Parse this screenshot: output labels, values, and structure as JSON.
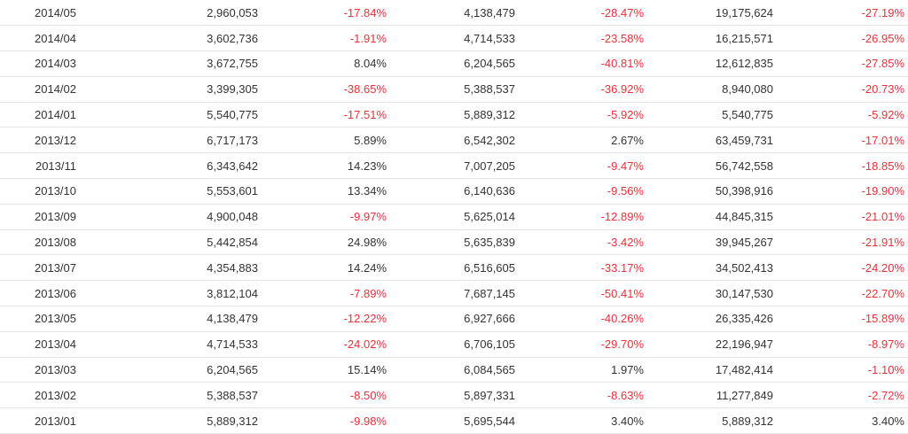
{
  "colors": {
    "text": "#333333",
    "negative": "#e8303a",
    "row_border": "#e5e5e5"
  },
  "rows": [
    {
      "period": "2014/05",
      "col1": "2,960,053",
      "col2": "-17.84%",
      "col3": "4,138,479",
      "col4": "-28.47%",
      "col5": "19,175,624",
      "col6": "-27.19%"
    },
    {
      "period": "2014/04",
      "col1": "3,602,736",
      "col2": "-1.91%",
      "col3": "4,714,533",
      "col4": "-23.58%",
      "col5": "16,215,571",
      "col6": "-26.95%"
    },
    {
      "period": "2014/03",
      "col1": "3,672,755",
      "col2": "8.04%",
      "col3": "6,204,565",
      "col4": "-40.81%",
      "col5": "12,612,835",
      "col6": "-27.85%"
    },
    {
      "period": "2014/02",
      "col1": "3,399,305",
      "col2": "-38.65%",
      "col3": "5,388,537",
      "col4": "-36.92%",
      "col5": "8,940,080",
      "col6": "-20.73%"
    },
    {
      "period": "2014/01",
      "col1": "5,540,775",
      "col2": "-17.51%",
      "col3": "5,889,312",
      "col4": "-5.92%",
      "col5": "5,540,775",
      "col6": "-5.92%"
    },
    {
      "period": "2013/12",
      "col1": "6,717,173",
      "col2": "5.89%",
      "col3": "6,542,302",
      "col4": "2.67%",
      "col5": "63,459,731",
      "col6": "-17.01%"
    },
    {
      "period": "2013/11",
      "col1": "6,343,642",
      "col2": "14.23%",
      "col3": "7,007,205",
      "col4": "-9.47%",
      "col5": "56,742,558",
      "col6": "-18.85%"
    },
    {
      "period": "2013/10",
      "col1": "5,553,601",
      "col2": "13.34%",
      "col3": "6,140,636",
      "col4": "-9.56%",
      "col5": "50,398,916",
      "col6": "-19.90%"
    },
    {
      "period": "2013/09",
      "col1": "4,900,048",
      "col2": "-9.97%",
      "col3": "5,625,014",
      "col4": "-12.89%",
      "col5": "44,845,315",
      "col6": "-21.01%"
    },
    {
      "period": "2013/08",
      "col1": "5,442,854",
      "col2": "24.98%",
      "col3": "5,635,839",
      "col4": "-3.42%",
      "col5": "39,945,267",
      "col6": "-21.91%"
    },
    {
      "period": "2013/07",
      "col1": "4,354,883",
      "col2": "14.24%",
      "col3": "6,516,605",
      "col4": "-33.17%",
      "col5": "34,502,413",
      "col6": "-24.20%"
    },
    {
      "period": "2013/06",
      "col1": "3,812,104",
      "col2": "-7.89%",
      "col3": "7,687,145",
      "col4": "-50.41%",
      "col5": "30,147,530",
      "col6": "-22.70%"
    },
    {
      "period": "2013/05",
      "col1": "4,138,479",
      "col2": "-12.22%",
      "col3": "6,927,666",
      "col4": "-40.26%",
      "col5": "26,335,426",
      "col6": "-15.89%"
    },
    {
      "period": "2013/04",
      "col1": "4,714,533",
      "col2": "-24.02%",
      "col3": "6,706,105",
      "col4": "-29.70%",
      "col5": "22,196,947",
      "col6": "-8.97%"
    },
    {
      "period": "2013/03",
      "col1": "6,204,565",
      "col2": "15.14%",
      "col3": "6,084,565",
      "col4": "1.97%",
      "col5": "17,482,414",
      "col6": "-1.10%"
    },
    {
      "period": "2013/02",
      "col1": "5,388,537",
      "col2": "-8.50%",
      "col3": "5,897,331",
      "col4": "-8.63%",
      "col5": "11,277,849",
      "col6": "-2.72%"
    },
    {
      "period": "2013/01",
      "col1": "5,889,312",
      "col2": "-9.98%",
      "col3": "5,695,544",
      "col4": "3.40%",
      "col5": "5,889,312",
      "col6": "3.40%"
    }
  ]
}
